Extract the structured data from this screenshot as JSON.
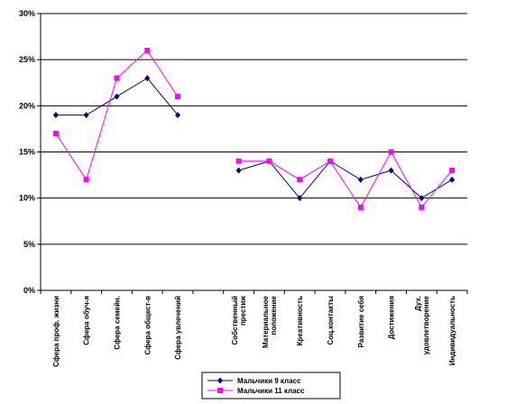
{
  "chart_data": {
    "type": "line",
    "ylim": [
      0,
      30
    ],
    "yticks": [
      "0%",
      "5%",
      "10%",
      "15%",
      "20%",
      "25%",
      "30%"
    ],
    "grid": true,
    "legend_position": "bottom",
    "categories": [
      [
        "Сфера проф. жизни"
      ],
      [
        "Сфера обуч-я"
      ],
      [
        "Сфера семейн."
      ],
      [
        "Сфера общест-в"
      ],
      [
        "Сфера увлечений"
      ],
      null,
      [
        "Собственный",
        "престиж"
      ],
      [
        "Материальное",
        "положение"
      ],
      [
        "Креативность"
      ],
      [
        "Соц.контакты"
      ],
      [
        "Развитие себя"
      ],
      [
        "Достижения"
      ],
      [
        "Дух.",
        "удовлетворение"
      ],
      [
        "Индивидуальность"
      ]
    ],
    "series": [
      {
        "name": "Мальчики 9 класс",
        "color": "#000080",
        "marker": "diamond",
        "values": [
          19,
          19,
          21,
          23,
          19,
          null,
          13,
          14,
          10,
          14,
          12,
          13,
          10,
          12
        ]
      },
      {
        "name": "Мальчики 11 класс",
        "color": "#ff00ff",
        "marker": "square",
        "values": [
          17,
          12,
          23,
          26,
          21,
          null,
          14,
          14,
          12,
          14,
          9,
          15,
          9,
          13
        ]
      }
    ]
  }
}
